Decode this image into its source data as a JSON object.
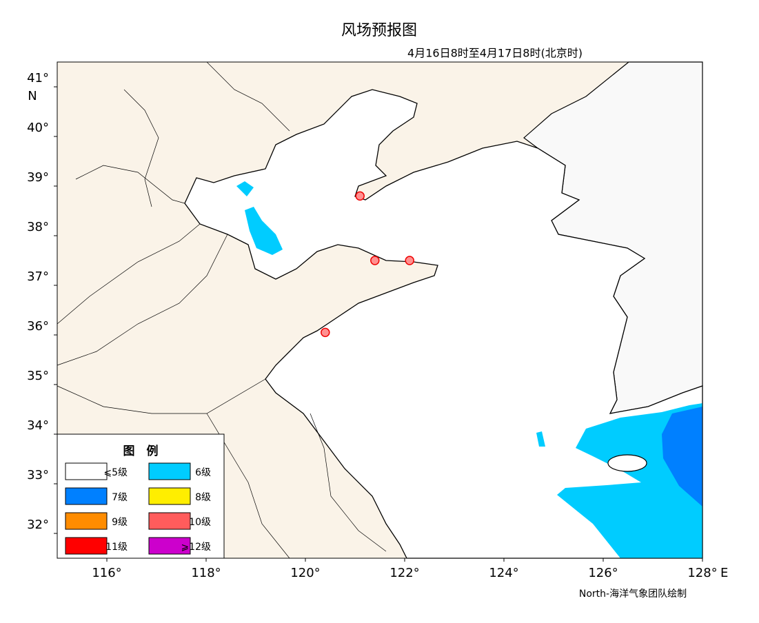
{
  "title": "风场预报图",
  "subtitle": "4月16日8时至4月17日8时(北京时)",
  "xticks": [
    {
      "value": 116,
      "label": "116°"
    },
    {
      "value": 118,
      "label": "118°"
    },
    {
      "value": 120,
      "label": "120°"
    },
    {
      "value": 122,
      "label": "122°"
    },
    {
      "value": 124,
      "label": "124°"
    },
    {
      "value": 126,
      "label": "126°"
    },
    {
      "value": 128,
      "label": "128°"
    }
  ],
  "yticks": [
    {
      "value": 32,
      "label": "32°"
    },
    {
      "value": 33,
      "label": "33°"
    },
    {
      "value": 34,
      "label": "34°"
    },
    {
      "value": 35,
      "label": "35°"
    },
    {
      "value": 36,
      "label": "36°"
    },
    {
      "value": 37,
      "label": "37°"
    },
    {
      "value": 38,
      "label": "38°"
    },
    {
      "value": 39,
      "label": "39°"
    },
    {
      "value": 40,
      "label": "40°"
    },
    {
      "value": 41,
      "label": "41°"
    }
  ],
  "xlim": [
    115,
    128
  ],
  "ylim": [
    31.5,
    41.5
  ],
  "lon_suffix": "E",
  "lat_suffix": "N",
  "stations": [
    {
      "lon": 121.1,
      "lat": 38.8
    },
    {
      "lon": 121.4,
      "lat": 37.5
    },
    {
      "lon": 122.1,
      "lat": 37.5
    },
    {
      "lon": 120.4,
      "lat": 36.05
    }
  ],
  "legend": {
    "title": "图　例",
    "items": [
      {
        "label": "⩽5级",
        "color": "#ffffff"
      },
      {
        "label": "6级",
        "color": "#00ccff"
      },
      {
        "label": "7级",
        "color": "#0080ff"
      },
      {
        "label": "8级",
        "color": "#ffee00"
      },
      {
        "label": "9级",
        "color": "#ff8c00"
      },
      {
        "label": "10级",
        "color": "#ff5c5c"
      },
      {
        "label": "11级",
        "color": "#ff0000"
      },
      {
        "label": "⩾12级",
        "color": "#cc00cc"
      }
    ]
  },
  "credit": "North-海洋气象团队绘制"
}
